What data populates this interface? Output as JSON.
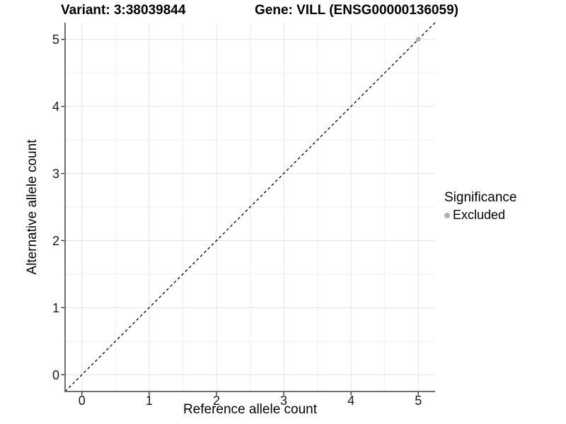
{
  "titles": {
    "left": "Variant: 3:38039844",
    "right": "Gene: VILL (ENSG00000136059)"
  },
  "chart_data": {
    "type": "scatter",
    "title": "Variant: 3:38039844    Gene: VILL (ENSG00000136059)",
    "xlabel": "Reference allele count",
    "ylabel": "Alternative allele count",
    "xlim": [
      -0.25,
      5.25
    ],
    "ylim": [
      -0.25,
      5.25
    ],
    "x_ticks": [
      0,
      1,
      2,
      3,
      4,
      5
    ],
    "y_ticks": [
      0,
      1,
      2,
      3,
      4,
      5
    ],
    "x_tick_labels": [
      "0",
      "1",
      "2",
      "3",
      "4",
      "5"
    ],
    "y_tick_labels": [
      "0",
      "1",
      "2",
      "3",
      "4",
      "5"
    ],
    "x_minor_ticks": [
      0.5,
      1.5,
      2.5,
      3.5,
      4.5
    ],
    "y_minor_ticks": [
      0.5,
      1.5,
      2.5,
      3.5,
      4.5
    ],
    "grid": true,
    "series": [
      {
        "name": "Excluded",
        "points": [
          {
            "x": 5,
            "y": 5
          }
        ],
        "color": "#b0b0b0"
      }
    ],
    "reference_line": {
      "slope": 1,
      "intercept": 0,
      "style": "dashed",
      "color": "#000000"
    },
    "legend_position": "right"
  },
  "legend": {
    "title": "Significance",
    "items": [
      {
        "label": "Excluded",
        "color": "#b0b0b0"
      }
    ]
  },
  "colors": {
    "background": "#ffffff",
    "grid_major": "#e3e3e3",
    "grid_minor": "#f1f1f1",
    "axis_line": "#707070",
    "tick_mark": "#333333",
    "tick_label": "#1a1a1a",
    "point": "#b0b0b0",
    "abline": "#000000"
  }
}
